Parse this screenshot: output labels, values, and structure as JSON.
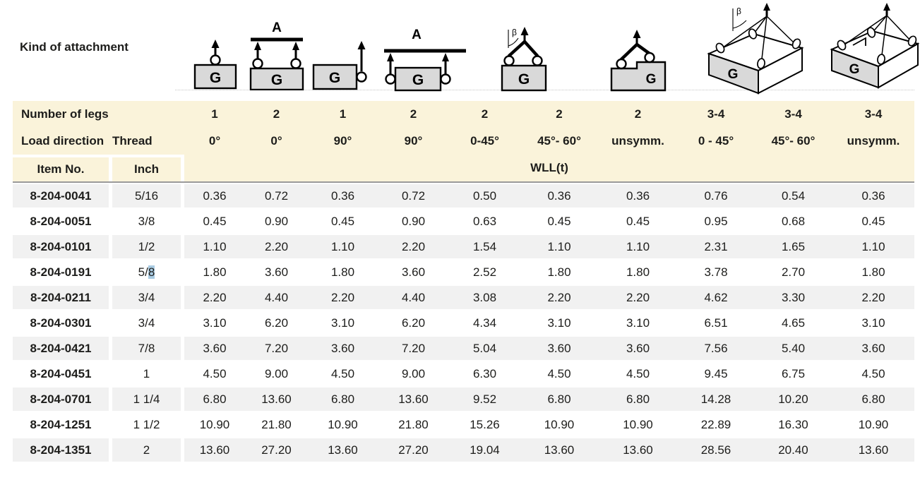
{
  "header": {
    "kind_label": "Kind of attachment",
    "glyphs": {
      "g": "G",
      "a": "A",
      "beta": "β"
    }
  },
  "band": {
    "legs_label": "Number of legs",
    "legs": [
      "1",
      "2",
      "1",
      "2",
      "2",
      "2",
      "2",
      "3-4",
      "3-4",
      "3-4"
    ],
    "direction_label": "Load direction",
    "thread_label": "Thread",
    "directions": [
      "0°",
      "0°",
      "90°",
      "90°",
      "0-45°",
      "45°- 60°",
      "unsymm.",
      "0 - 45°",
      "45°- 60°",
      "unsymm."
    ],
    "item_label": "Item No.",
    "inch_label": "Inch",
    "wll_label": "WLL(t)"
  },
  "table": {
    "rows": [
      {
        "item": "8-204-0041",
        "thread": "5/16",
        "wll": [
          "0.36",
          "0.72",
          "0.36",
          "0.72",
          "0.50",
          "0.36",
          "0.36",
          "0.76",
          "0.54",
          "0.36"
        ]
      },
      {
        "item": "8-204-0051",
        "thread": "3/8",
        "wll": [
          "0.45",
          "0.90",
          "0.45",
          "0.90",
          "0.63",
          "0.45",
          "0.45",
          "0.95",
          "0.68",
          "0.45"
        ]
      },
      {
        "item": "8-204-0101",
        "thread": "1/2",
        "wll": [
          "1.10",
          "2.20",
          "1.10",
          "2.20",
          "1.54",
          "1.10",
          "1.10",
          "2.31",
          "1.65",
          "1.10"
        ]
      },
      {
        "item": "8-204-0191",
        "thread": "5/8",
        "hl": true,
        "wll": [
          "1.80",
          "3.60",
          "1.80",
          "3.60",
          "2.52",
          "1.80",
          "1.80",
          "3.78",
          "2.70",
          "1.80"
        ]
      },
      {
        "item": "8-204-0211",
        "thread": "3/4",
        "wll": [
          "2.20",
          "4.40",
          "2.20",
          "4.40",
          "3.08",
          "2.20",
          "2.20",
          "4.62",
          "3.30",
          "2.20"
        ]
      },
      {
        "item": "8-204-0301",
        "thread": "3/4",
        "wll": [
          "3.10",
          "6.20",
          "3.10",
          "6.20",
          "4.34",
          "3.10",
          "3.10",
          "6.51",
          "4.65",
          "3.10"
        ]
      },
      {
        "item": "8-204-0421",
        "thread": "7/8",
        "wll": [
          "3.60",
          "7.20",
          "3.60",
          "7.20",
          "5.04",
          "3.60",
          "3.60",
          "7.56",
          "5.40",
          "3.60"
        ]
      },
      {
        "item": "8-204-0451",
        "thread": "1",
        "wll": [
          "4.50",
          "9.00",
          "4.50",
          "9.00",
          "6.30",
          "4.50",
          "4.50",
          "9.45",
          "6.75",
          "4.50"
        ]
      },
      {
        "item": "8-204-0701",
        "thread": "1 1/4",
        "wll": [
          "6.80",
          "13.60",
          "6.80",
          "13.60",
          "9.52",
          "6.80",
          "6.80",
          "14.28",
          "10.20",
          "6.80"
        ]
      },
      {
        "item": "8-204-1251",
        "thread": "1 1/2",
        "wll": [
          "10.90",
          "21.80",
          "10.90",
          "21.80",
          "15.26",
          "10.90",
          "10.90",
          "22.89",
          "16.30",
          "10.90"
        ]
      },
      {
        "item": "8-204-1351",
        "thread": "2",
        "wll": [
          "13.60",
          "27.20",
          "13.60",
          "27.20",
          "19.04",
          "13.60",
          "13.60",
          "28.56",
          "20.40",
          "13.60"
        ]
      }
    ]
  },
  "colors": {
    "band_bg": "#faf3da",
    "row_stripe": "#f1f1f1",
    "header_rule": "#9a9a9a",
    "selection_highlight": "#a9cbe2",
    "diagram_fill": "#d9d9d9",
    "text": "#1d1d1b"
  }
}
